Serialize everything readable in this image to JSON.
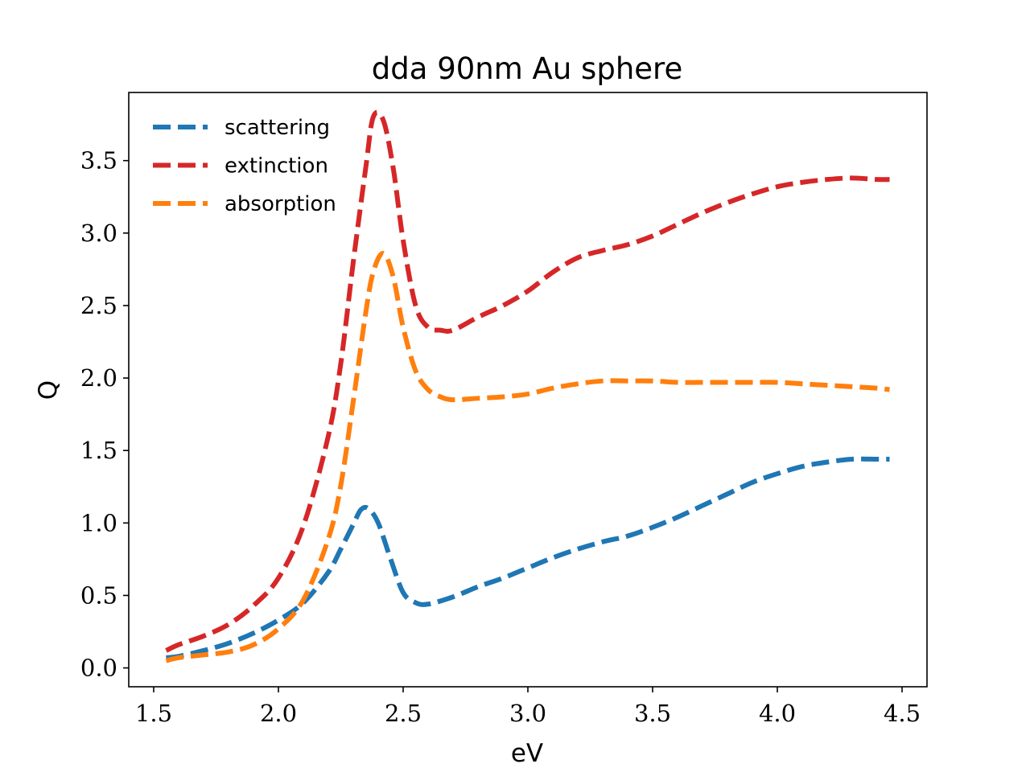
{
  "chart_data": {
    "type": "line",
    "title": "dda 90nm Au sphere",
    "xlabel": "eV",
    "ylabel": "Q",
    "xlim": [
      1.4,
      4.6
    ],
    "ylim": [
      -0.13,
      3.97
    ],
    "xticks": [
      1.5,
      2.0,
      2.5,
      3.0,
      3.5,
      4.0,
      4.5
    ],
    "xtick_labels": [
      "1.5",
      "2.0",
      "2.5",
      "3.0",
      "3.5",
      "4.0",
      "4.5"
    ],
    "yticks": [
      0.0,
      0.5,
      1.0,
      1.5,
      2.0,
      2.5,
      3.0,
      3.5
    ],
    "ytick_labels": [
      "0.0",
      "0.5",
      "1.0",
      "1.5",
      "2.0",
      "2.5",
      "3.0",
      "3.5"
    ],
    "grid": false,
    "legend_position": "top-left",
    "line_style": "dashed",
    "series": [
      {
        "name": "scattering",
        "color": "#1f77b4",
        "x": [
          1.55,
          1.6,
          1.7,
          1.8,
          1.9,
          2.0,
          2.1,
          2.2,
          2.25,
          2.3,
          2.33,
          2.36,
          2.4,
          2.45,
          2.5,
          2.55,
          2.6,
          2.7,
          2.8,
          2.9,
          3.0,
          3.1,
          3.2,
          3.3,
          3.4,
          3.5,
          3.6,
          3.7,
          3.8,
          3.9,
          4.0,
          4.1,
          4.2,
          4.3,
          4.4,
          4.45
        ],
        "y": [
          0.07,
          0.08,
          0.12,
          0.17,
          0.24,
          0.33,
          0.45,
          0.66,
          0.82,
          0.99,
          1.09,
          1.1,
          1.0,
          0.75,
          0.52,
          0.45,
          0.44,
          0.49,
          0.56,
          0.62,
          0.69,
          0.76,
          0.82,
          0.87,
          0.91,
          0.97,
          1.04,
          1.12,
          1.2,
          1.28,
          1.34,
          1.39,
          1.42,
          1.44,
          1.44,
          1.44
        ]
      },
      {
        "name": "extinction",
        "color": "#d62728",
        "x": [
          1.55,
          1.6,
          1.7,
          1.8,
          1.9,
          2.0,
          2.1,
          2.2,
          2.25,
          2.3,
          2.35,
          2.38,
          2.42,
          2.46,
          2.5,
          2.55,
          2.6,
          2.65,
          2.7,
          2.8,
          2.9,
          3.0,
          3.1,
          3.2,
          3.3,
          3.4,
          3.5,
          3.6,
          3.7,
          3.8,
          3.9,
          4.0,
          4.1,
          4.2,
          4.3,
          4.4,
          4.45
        ],
        "y": [
          0.12,
          0.16,
          0.22,
          0.3,
          0.43,
          0.62,
          0.98,
          1.6,
          2.1,
          2.8,
          3.45,
          3.8,
          3.78,
          3.45,
          2.95,
          2.5,
          2.35,
          2.33,
          2.33,
          2.42,
          2.5,
          2.6,
          2.73,
          2.83,
          2.88,
          2.92,
          2.98,
          3.06,
          3.14,
          3.21,
          3.27,
          3.32,
          3.35,
          3.37,
          3.38,
          3.37,
          3.37
        ]
      },
      {
        "name": "absorption",
        "color": "#ff7f0e",
        "x": [
          1.55,
          1.6,
          1.7,
          1.8,
          1.9,
          2.0,
          2.1,
          2.2,
          2.25,
          2.3,
          2.35,
          2.38,
          2.42,
          2.46,
          2.5,
          2.55,
          2.6,
          2.65,
          2.7,
          2.8,
          2.9,
          3.0,
          3.1,
          3.2,
          3.3,
          3.4,
          3.5,
          3.6,
          3.7,
          3.8,
          3.9,
          4.0,
          4.1,
          4.2,
          4.3,
          4.4,
          4.45
        ],
        "y": [
          0.05,
          0.07,
          0.09,
          0.11,
          0.16,
          0.27,
          0.47,
          0.89,
          1.26,
          1.84,
          2.45,
          2.73,
          2.86,
          2.7,
          2.35,
          2.05,
          1.92,
          1.87,
          1.85,
          1.86,
          1.87,
          1.89,
          1.93,
          1.96,
          1.98,
          1.98,
          1.98,
          1.97,
          1.97,
          1.97,
          1.97,
          1.97,
          1.96,
          1.95,
          1.94,
          1.93,
          1.92
        ]
      }
    ]
  }
}
